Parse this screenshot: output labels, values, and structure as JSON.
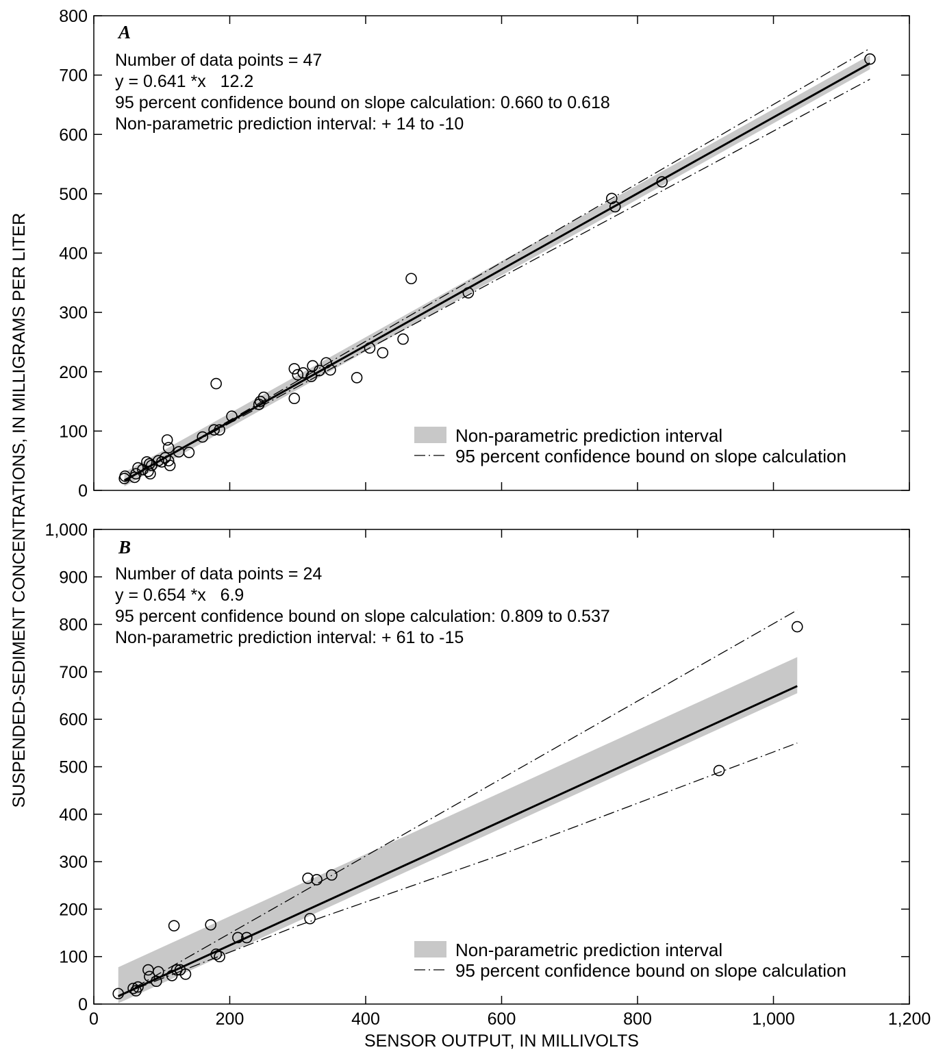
{
  "chart_data": [
    {
      "type": "scatter",
      "panel_label": "A",
      "xlim": [
        0,
        1200
      ],
      "ylim": [
        0,
        800
      ],
      "x_ticks": [
        0,
        200,
        400,
        600,
        800,
        1000,
        1200
      ],
      "y_ticks": [
        0,
        100,
        200,
        300,
        400,
        500,
        600,
        700,
        800
      ],
      "y_tick_labels": [
        "0",
        "100",
        "200",
        "300",
        "400",
        "500",
        "600",
        "700",
        "800"
      ],
      "annotations": [
        "Number of data points = 47",
        "y = 0.641 *x   12.2",
        "95 percent confidence bound on slope calculation: 0.660 to 0.618",
        "Non-parametric prediction interval: + 14 to -10"
      ],
      "legend": {
        "placement": "bottom-right",
        "items": [
          "Non-parametric prediction interval",
          "95 percent confidence bound on slope calculation"
        ]
      },
      "series": [
        {
          "kind": "points",
          "x": [
            45,
            46,
            60,
            62,
            65,
            72,
            78,
            80,
            82,
            83,
            85,
            95,
            100,
            105,
            108,
            110,
            110,
            112,
            125,
            140,
            160,
            177,
            180,
            185,
            203,
            243,
            245,
            250,
            295,
            295,
            300,
            308,
            320,
            322,
            332,
            342,
            348,
            387,
            406,
            425,
            455,
            467,
            551,
            762,
            767,
            836,
            1142
          ],
          "y": [
            20,
            24,
            22,
            28,
            38,
            35,
            48,
            32,
            45,
            28,
            42,
            50,
            48,
            55,
            85,
            72,
            50,
            42,
            65,
            64,
            90,
            102,
            180,
            102,
            125,
            145,
            150,
            157,
            205,
            155,
            195,
            198,
            192,
            210,
            202,
            215,
            203,
            190,
            240,
            232,
            255,
            357,
            333,
            492,
            478,
            520,
            727
          ]
        },
        {
          "kind": "regression-line",
          "x": [
            45,
            1142
          ],
          "y": [
            16.6,
            719.8
          ]
        },
        {
          "kind": "prediction-interval",
          "x": [
            45,
            1142
          ],
          "upper": [
            30.6,
            733.8
          ],
          "lower": [
            6.6,
            709.8
          ]
        },
        {
          "kind": "confidence-bound-upper",
          "x": [
            45,
            1142
          ],
          "y": [
            15,
            745
          ]
        },
        {
          "kind": "confidence-bound-lower",
          "x": [
            45,
            1142
          ],
          "y": [
            18,
            693
          ]
        }
      ]
    },
    {
      "type": "scatter",
      "panel_label": "B",
      "xlim": [
        0,
        1200
      ],
      "ylim": [
        0,
        1000
      ],
      "x_ticks": [
        0,
        200,
        400,
        600,
        800,
        1000,
        1200
      ],
      "x_tick_labels": [
        "0",
        "200",
        "400",
        "600",
        "800",
        "1,000",
        "1,200"
      ],
      "y_ticks": [
        0,
        100,
        200,
        300,
        400,
        500,
        600,
        700,
        800,
        900,
        1000
      ],
      "y_tick_labels": [
        "0",
        "100",
        "200",
        "300",
        "400",
        "500",
        "600",
        "700",
        "800",
        "900",
        "1,000"
      ],
      "xlabel": "SENSOR OUTPUT, IN MILLIVOLTS",
      "annotations": [
        "Number of data points = 24",
        "y = 0.654 *x   6.9",
        "95 percent confidence bound on slope calculation: 0.809 to 0.537",
        "Non-parametric prediction interval: + 61 to -15"
      ],
      "legend": {
        "placement": "bottom-right",
        "items": [
          "Non-parametric prediction interval",
          "95 percent confidence bound on slope calculation"
        ]
      },
      "series": [
        {
          "kind": "points",
          "x": [
            36,
            58,
            62,
            65,
            80,
            82,
            92,
            95,
            115,
            118,
            122,
            127,
            135,
            172,
            180,
            185,
            212,
            225,
            315,
            318,
            328,
            350,
            920,
            1035
          ],
          "y": [
            22,
            33,
            28,
            36,
            72,
            58,
            48,
            68,
            60,
            165,
            72,
            72,
            63,
            167,
            105,
            100,
            140,
            140,
            265,
            180,
            262,
            272,
            492,
            795
          ]
        },
        {
          "kind": "regression-line",
          "x": [
            36,
            1035
          ],
          "y": [
            16.6,
            670
          ]
        },
        {
          "kind": "prediction-interval",
          "x": [
            36,
            1035
          ],
          "upper": [
            77.6,
            731
          ],
          "lower": [
            1.6,
            655
          ]
        },
        {
          "kind": "confidence-bound-upper",
          "x": [
            36,
            1035
          ],
          "y": [
            15,
            830
          ]
        },
        {
          "kind": "confidence-bound-lower",
          "x": [
            36,
            300,
            600,
            920,
            1035
          ],
          "y": [
            18,
            165,
            315,
            488,
            550
          ]
        }
      ]
    }
  ],
  "shared_ylabel": "SUSPENDED-SEDIMENT CONCENTRATIONS, IN MILLIGRAMS PER LITER",
  "colors": {
    "band": "#c8c8c8",
    "line": "#000000",
    "point": "#000000"
  }
}
